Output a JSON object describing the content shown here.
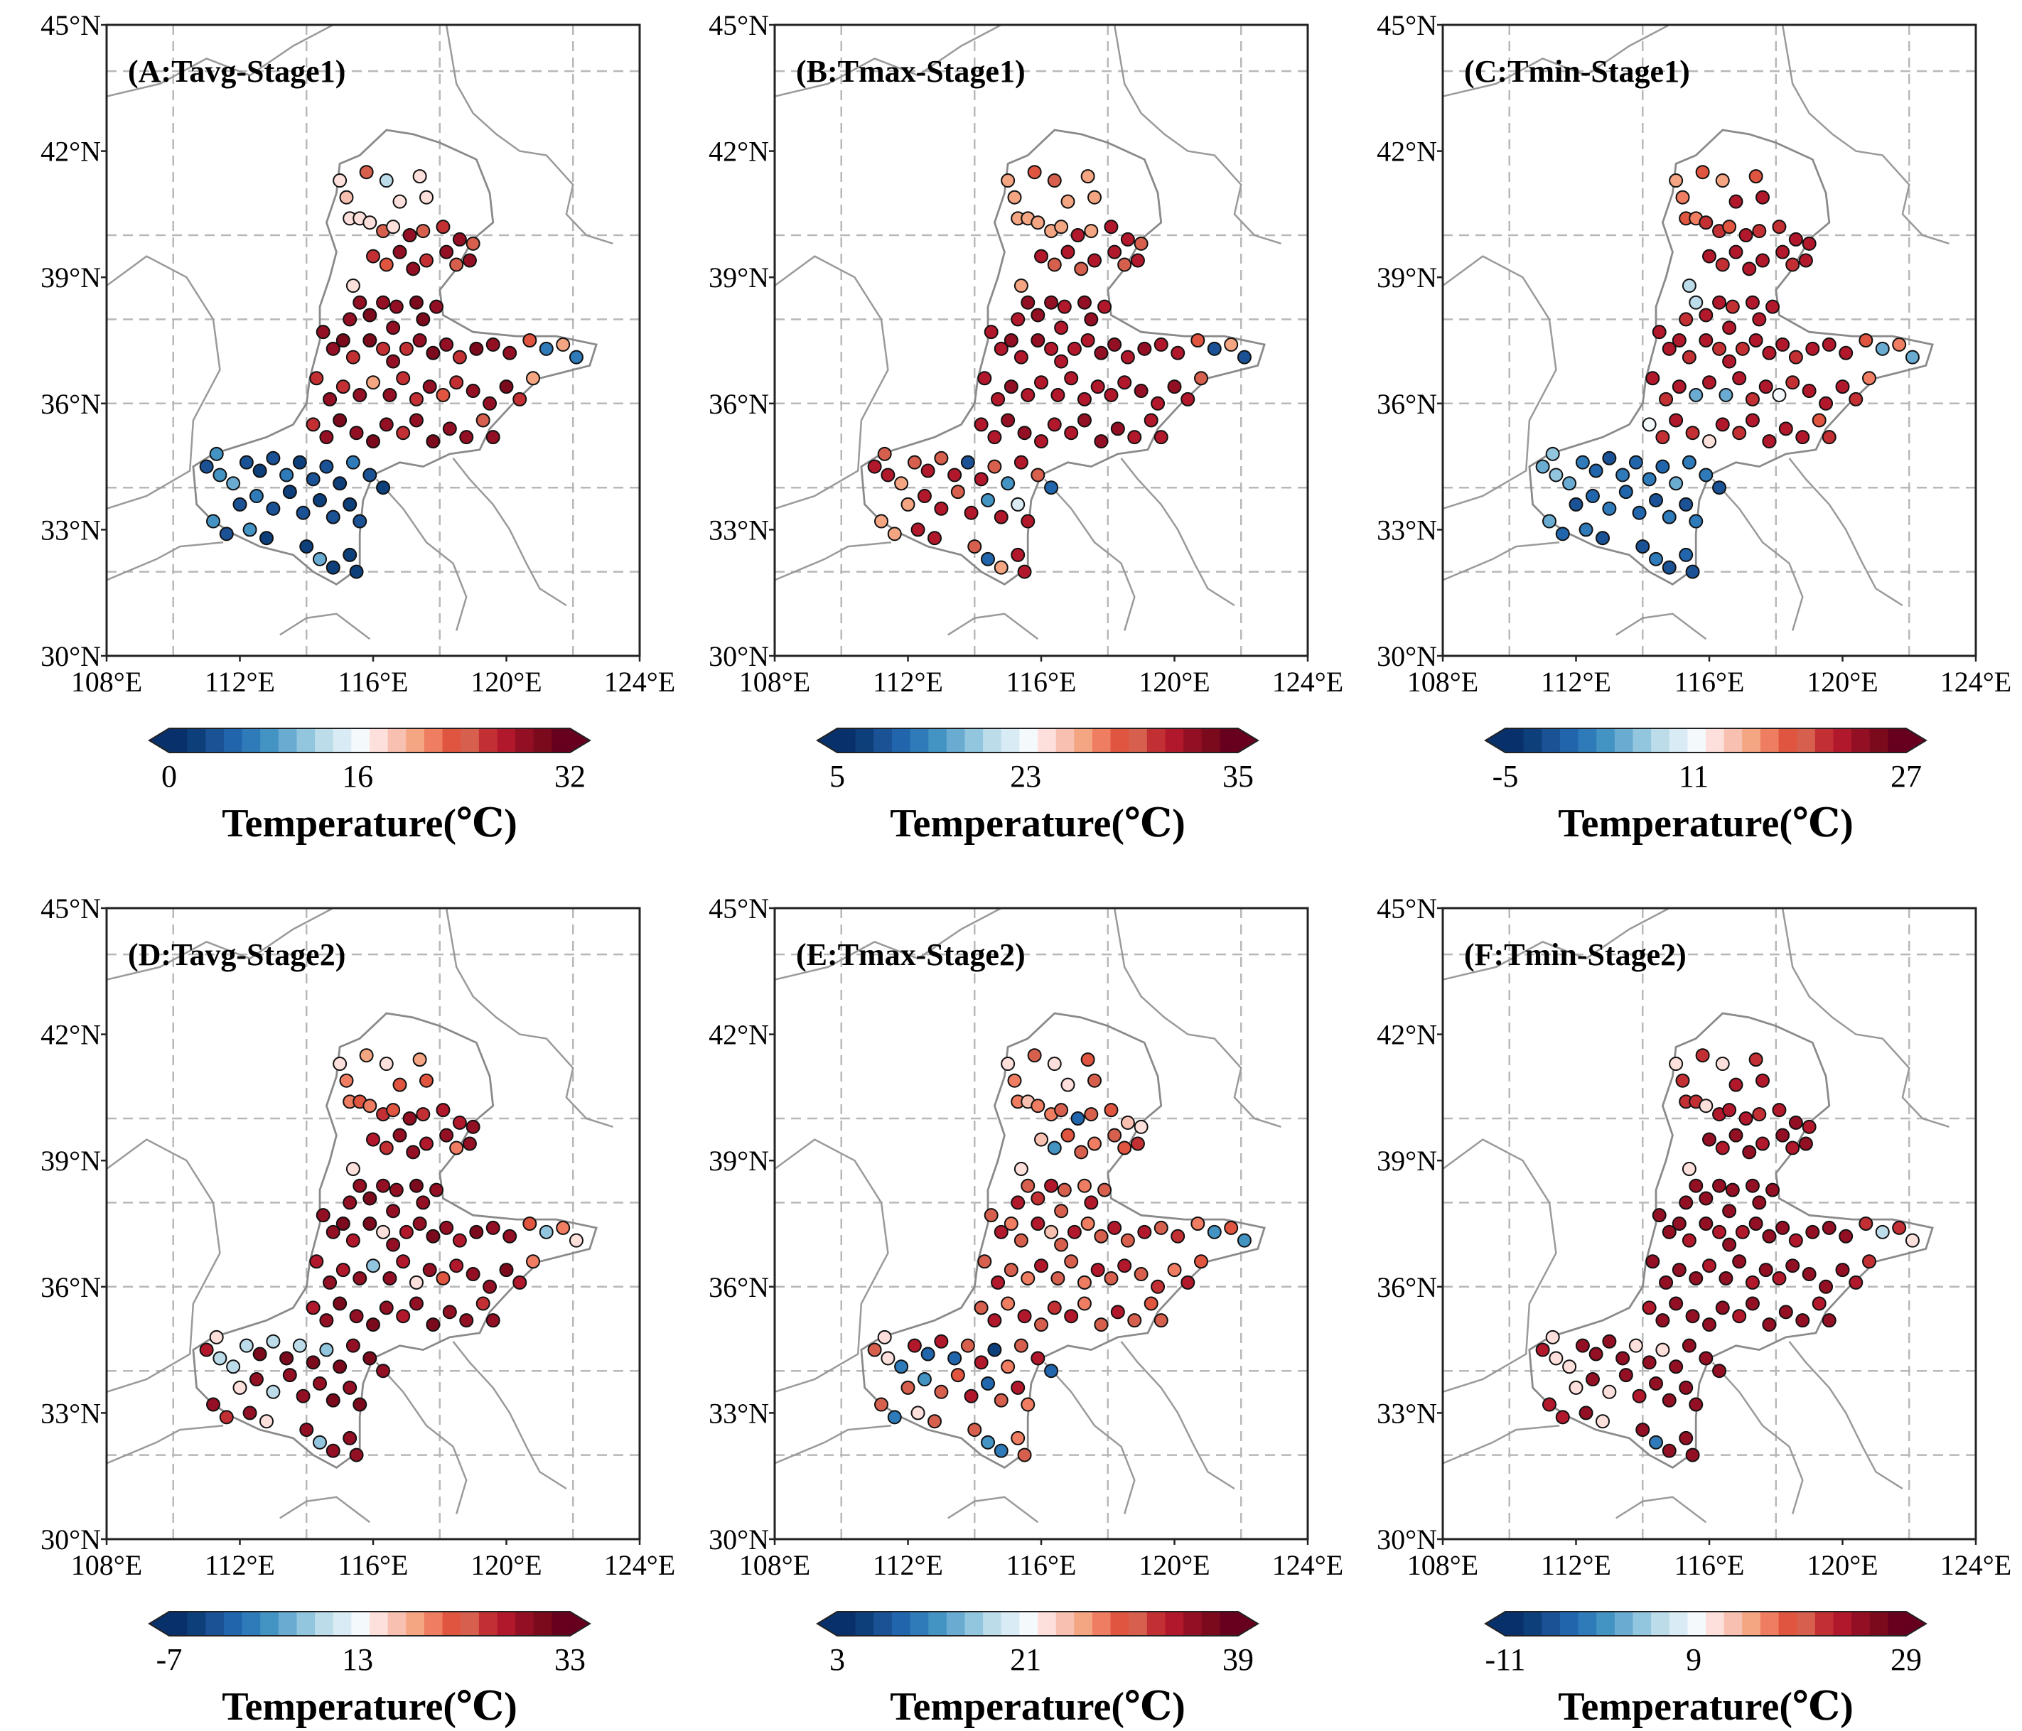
{
  "x_tick_labels": [
    "108°E",
    "112°E",
    "116°E",
    "120°E",
    "124°E"
  ],
  "y_tick_labels": [
    "45°N",
    "42°N",
    "39°N",
    "36°N",
    "33°N",
    "30°N"
  ],
  "x_tick_values": [
    108,
    112,
    116,
    120,
    124
  ],
  "y_tick_values": [
    45,
    42,
    39,
    36,
    33,
    30
  ],
  "extent": {
    "lon": [
      108,
      124
    ],
    "lat": [
      30,
      45
    ]
  },
  "colorbar_label": "Temperature(℃)",
  "colormap": [
    "#08306b",
    "#0d3f7a",
    "#1a5295",
    "#2166ac",
    "#2f7ab8",
    "#4393c3",
    "#6aabd2",
    "#92c5de",
    "#bcdcea",
    "#d9ebf4",
    "#f4f9fc",
    "#fde0dc",
    "#f8c0b0",
    "#f4a582",
    "#ee7d62",
    "#e0553f",
    "#d6604d",
    "#c33034",
    "#b2182b",
    "#930f23",
    "#7a0a1c",
    "#67001f"
  ],
  "stations": [
    [
      115.8,
      41.5
    ],
    [
      116.4,
      41.3
    ],
    [
      117.4,
      41.4
    ],
    [
      115,
      41.3
    ],
    [
      115.2,
      40.9
    ],
    [
      116.8,
      40.8
    ],
    [
      117.6,
      40.9
    ],
    [
      115.3,
      40.4
    ],
    [
      115.6,
      40.4
    ],
    [
      115.9,
      40.3
    ],
    [
      116.3,
      40.1
    ],
    [
      116.6,
      40.2
    ],
    [
      117.1,
      40.0
    ],
    [
      117.5,
      40.1
    ],
    [
      118.1,
      40.2
    ],
    [
      118.6,
      39.9
    ],
    [
      119.0,
      39.8
    ],
    [
      116.0,
      39.5
    ],
    [
      116.4,
      39.3
    ],
    [
      116.8,
      39.6
    ],
    [
      117.2,
      39.2
    ],
    [
      117.6,
      39.4
    ],
    [
      118.2,
      39.6
    ],
    [
      118.5,
      39.3
    ],
    [
      118.9,
      39.4
    ],
    [
      115.4,
      38.8
    ],
    [
      115.6,
      38.4
    ],
    [
      115.3,
      38.0
    ],
    [
      115.9,
      38.1
    ],
    [
      116.3,
      38.4
    ],
    [
      116.7,
      38.3
    ],
    [
      116.6,
      37.8
    ],
    [
      117.3,
      38.4
    ],
    [
      117.5,
      38.0
    ],
    [
      117.9,
      38.3
    ],
    [
      114.5,
      37.7
    ],
    [
      114.8,
      37.3
    ],
    [
      115.1,
      37.5
    ],
    [
      115.4,
      37.1
    ],
    [
      115.9,
      37.5
    ],
    [
      116.3,
      37.3
    ],
    [
      116.6,
      37.0
    ],
    [
      117.0,
      37.3
    ],
    [
      117.4,
      37.5
    ],
    [
      117.8,
      37.2
    ],
    [
      118.2,
      37.4
    ],
    [
      118.6,
      37.1
    ],
    [
      119.1,
      37.3
    ],
    [
      119.6,
      37.4
    ],
    [
      120.1,
      37.2
    ],
    [
      120.7,
      37.5
    ],
    [
      121.2,
      37.3
    ],
    [
      121.7,
      37.4
    ],
    [
      122.1,
      37.1
    ],
    [
      114.3,
      36.6
    ],
    [
      114.7,
      36.1
    ],
    [
      115.1,
      36.4
    ],
    [
      115.6,
      36.2
    ],
    [
      116.0,
      36.5
    ],
    [
      116.5,
      36.2
    ],
    [
      116.9,
      36.6
    ],
    [
      117.3,
      36.1
    ],
    [
      117.7,
      36.4
    ],
    [
      118.1,
      36.2
    ],
    [
      118.5,
      36.5
    ],
    [
      119.0,
      36.3
    ],
    [
      119.5,
      36.0
    ],
    [
      120.0,
      36.4
    ],
    [
      120.4,
      36.1
    ],
    [
      120.8,
      36.6
    ],
    [
      114.2,
      35.5
    ],
    [
      114.6,
      35.2
    ],
    [
      115.0,
      35.6
    ],
    [
      115.5,
      35.3
    ],
    [
      116.0,
      35.1
    ],
    [
      116.4,
      35.5
    ],
    [
      116.9,
      35.3
    ],
    [
      117.3,
      35.6
    ],
    [
      117.8,
      35.1
    ],
    [
      118.3,
      35.4
    ],
    [
      118.8,
      35.2
    ],
    [
      119.3,
      35.6
    ],
    [
      119.6,
      35.2
    ],
    [
      112.2,
      34.6
    ],
    [
      112.6,
      34.4
    ],
    [
      113.0,
      34.7
    ],
    [
      113.4,
      34.3
    ],
    [
      113.8,
      34.6
    ],
    [
      114.2,
      34.2
    ],
    [
      114.6,
      34.5
    ],
    [
      115.0,
      34.1
    ],
    [
      115.4,
      34.6
    ],
    [
      115.9,
      34.3
    ],
    [
      116.3,
      34.0
    ],
    [
      111.0,
      34.5
    ],
    [
      111.4,
      34.3
    ],
    [
      111.3,
      34.8
    ],
    [
      111.8,
      34.1
    ],
    [
      112.0,
      33.6
    ],
    [
      112.5,
      33.8
    ],
    [
      113.0,
      33.5
    ],
    [
      113.5,
      33.9
    ],
    [
      113.9,
      33.4
    ],
    [
      114.4,
      33.7
    ],
    [
      114.8,
      33.3
    ],
    [
      115.3,
      33.6
    ],
    [
      115.6,
      33.2
    ],
    [
      111.2,
      33.2
    ],
    [
      111.6,
      32.9
    ],
    [
      112.3,
      33.0
    ],
    [
      112.8,
      32.8
    ],
    [
      114.0,
      32.6
    ],
    [
      114.4,
      32.3
    ],
    [
      114.8,
      32.1
    ],
    [
      115.3,
      32.4
    ],
    [
      115.5,
      32.0
    ]
  ],
  "panels": [
    {
      "title": "(A:Tavg-Stage1)",
      "cbar_ticks": [
        "0",
        "16",
        "32"
      ],
      "vmin": 0,
      "vmax": 32,
      "values": [
        24,
        12,
        16,
        16,
        18,
        16,
        16,
        16,
        16,
        16,
        24,
        16,
        28,
        24,
        26,
        28,
        24,
        26,
        22,
        28,
        28,
        26,
        28,
        24,
        28,
        16,
        28,
        28,
        30,
        28,
        28,
        28,
        30,
        30,
        28,
        28,
        28,
        30,
        26,
        30,
        26,
        28,
        26,
        28,
        30,
        28,
        26,
        30,
        28,
        28,
        22,
        6,
        20,
        6,
        26,
        28,
        26,
        28,
        20,
        28,
        26,
        26,
        28,
        22,
        26,
        28,
        28,
        30,
        26,
        20,
        26,
        28,
        30,
        28,
        30,
        28,
        26,
        28,
        30,
        28,
        28,
        24,
        28,
        4,
        2,
        4,
        6,
        2,
        4,
        4,
        2,
        6,
        4,
        2,
        4,
        8,
        8,
        10,
        4,
        6,
        4,
        2,
        4,
        2,
        4,
        2,
        4,
        8,
        4,
        8,
        2,
        2,
        10,
        2,
        2,
        2,
        4
      ]
    },
    {
      "title": "(B:Tmax-Stage1)",
      "cbar_ticks": [
        "5",
        "23",
        "35"
      ],
      "vmin": 5,
      "vmax": 35,
      "values": [
        26,
        28,
        24,
        23,
        23,
        23,
        23,
        23,
        23,
        23,
        24,
        24,
        30,
        23,
        30,
        30,
        28,
        30,
        28,
        30,
        28,
        30,
        30,
        28,
        30,
        23,
        32,
        30,
        32,
        32,
        30,
        30,
        32,
        32,
        30,
        30,
        30,
        32,
        30,
        32,
        30,
        30,
        30,
        30,
        32,
        32,
        30,
        32,
        30,
        30,
        26,
        8,
        24,
        8,
        30,
        30,
        32,
        30,
        30,
        30,
        30,
        30,
        30,
        30,
        30,
        32,
        30,
        32,
        30,
        28,
        30,
        30,
        32,
        32,
        30,
        30,
        30,
        32,
        32,
        32,
        30,
        30,
        30,
        28,
        30,
        28,
        30,
        8,
        30,
        28,
        12,
        30,
        28,
        10,
        30,
        30,
        28,
        23,
        23,
        30,
        30,
        28,
        30,
        12,
        30,
        18,
        30,
        24,
        23,
        30,
        30,
        28,
        10,
        24,
        30,
        30,
        30
      ]
    },
    {
      "title": "(C:Tmin-Stage1)",
      "cbar_ticks": [
        "-5",
        "11",
        "27"
      ],
      "vmin": -5,
      "vmax": 27,
      "values": [
        18,
        15,
        18,
        14,
        16,
        22,
        22,
        18,
        16,
        20,
        20,
        18,
        22,
        20,
        20,
        22,
        22,
        22,
        20,
        22,
        22,
        22,
        22,
        20,
        22,
        8,
        8,
        20,
        22,
        22,
        20,
        22,
        22,
        22,
        22,
        22,
        22,
        22,
        20,
        22,
        20,
        22,
        20,
        22,
        22,
        22,
        20,
        22,
        22,
        22,
        18,
        4,
        16,
        4,
        22,
        20,
        22,
        4,
        22,
        4,
        22,
        20,
        22,
        10,
        20,
        22,
        22,
        22,
        20,
        16,
        10,
        20,
        22,
        20,
        11,
        22,
        20,
        22,
        22,
        22,
        22,
        18,
        20,
        2,
        0,
        -2,
        2,
        0,
        2,
        0,
        4,
        2,
        2,
        -2,
        4,
        6,
        6,
        4,
        -2,
        0,
        2,
        0,
        0,
        -2,
        2,
        -2,
        2,
        4,
        0,
        2,
        -2,
        -2,
        2,
        -2,
        0,
        -2,
        2
      ]
    },
    {
      "title": "(D:Tavg-Stage2)",
      "cbar_ticks": [
        "-7",
        "13",
        "33"
      ],
      "vmin": -7,
      "vmax": 33,
      "values": [
        18,
        13,
        18,
        13,
        20,
        22,
        22,
        20,
        22,
        20,
        24,
        22,
        28,
        24,
        26,
        26,
        28,
        26,
        24,
        28,
        28,
        26,
        28,
        20,
        28,
        13,
        28,
        28,
        30,
        28,
        28,
        28,
        30,
        28,
        28,
        28,
        28,
        30,
        26,
        30,
        13,
        28,
        26,
        28,
        30,
        28,
        26,
        30,
        28,
        28,
        22,
        6,
        20,
        13,
        26,
        28,
        26,
        28,
        6,
        28,
        26,
        13,
        28,
        22,
        26,
        28,
        28,
        30,
        26,
        20,
        26,
        28,
        30,
        28,
        30,
        28,
        26,
        28,
        30,
        28,
        28,
        24,
        28,
        8,
        30,
        8,
        30,
        8,
        30,
        6,
        30,
        28,
        30,
        28,
        26,
        8,
        13,
        8,
        13,
        28,
        8,
        28,
        28,
        28,
        30,
        28,
        30,
        28,
        24,
        28,
        13,
        28,
        6,
        28,
        28,
        28,
        30
      ]
    },
    {
      "title": "(E:Tmax-Stage2)",
      "cbar_ticks": [
        "3",
        "21",
        "39"
      ],
      "vmin": 3,
      "vmax": 39,
      "values": [
        30,
        21,
        28,
        21,
        26,
        21,
        30,
        26,
        24,
        26,
        26,
        30,
        8,
        30,
        28,
        24,
        21,
        24,
        12,
        28,
        30,
        26,
        30,
        28,
        32,
        21,
        30,
        34,
        32,
        34,
        30,
        30,
        26,
        34,
        30,
        30,
        34,
        26,
        30,
        34,
        24,
        30,
        34,
        26,
        30,
        34,
        30,
        34,
        30,
        32,
        26,
        12,
        28,
        12,
        30,
        34,
        30,
        26,
        34,
        30,
        30,
        26,
        34,
        30,
        34,
        30,
        32,
        26,
        34,
        28,
        30,
        34,
        26,
        34,
        30,
        32,
        34,
        26,
        30,
        34,
        30,
        28,
        30,
        34,
        8,
        34,
        8,
        30,
        34,
        6,
        26,
        30,
        34,
        8,
        30,
        21,
        21,
        10,
        30,
        12,
        30,
        28,
        34,
        8,
        30,
        34,
        26,
        30,
        10,
        21,
        30,
        30,
        12,
        10,
        26,
        30,
        28
      ]
    },
    {
      "title": "(F:Tmin-Stage2)",
      "cbar_ticks": [
        "-11",
        "9",
        "29"
      ],
      "vmin": -11,
      "vmax": 29,
      "values": [
        20,
        9,
        20,
        9,
        20,
        22,
        22,
        20,
        20,
        9,
        22,
        22,
        22,
        20,
        22,
        24,
        22,
        24,
        22,
        24,
        24,
        22,
        24,
        22,
        24,
        9,
        24,
        24,
        24,
        24,
        24,
        24,
        24,
        24,
        24,
        24,
        24,
        24,
        22,
        24,
        22,
        24,
        22,
        24,
        24,
        24,
        22,
        24,
        24,
        24,
        20,
        4,
        20,
        9,
        24,
        24,
        24,
        24,
        22,
        24,
        24,
        22,
        24,
        22,
        24,
        24,
        24,
        24,
        22,
        20,
        22,
        24,
        24,
        24,
        24,
        24,
        22,
        24,
        24,
        24,
        24,
        22,
        24,
        24,
        24,
        24,
        24,
        9,
        24,
        9,
        24,
        24,
        24,
        24,
        22,
        9,
        9,
        9,
        9,
        24,
        9,
        24,
        22,
        24,
        24,
        24,
        24,
        22,
        22,
        24,
        9,
        24,
        -2,
        24,
        24,
        24,
        24
      ]
    }
  ]
}
